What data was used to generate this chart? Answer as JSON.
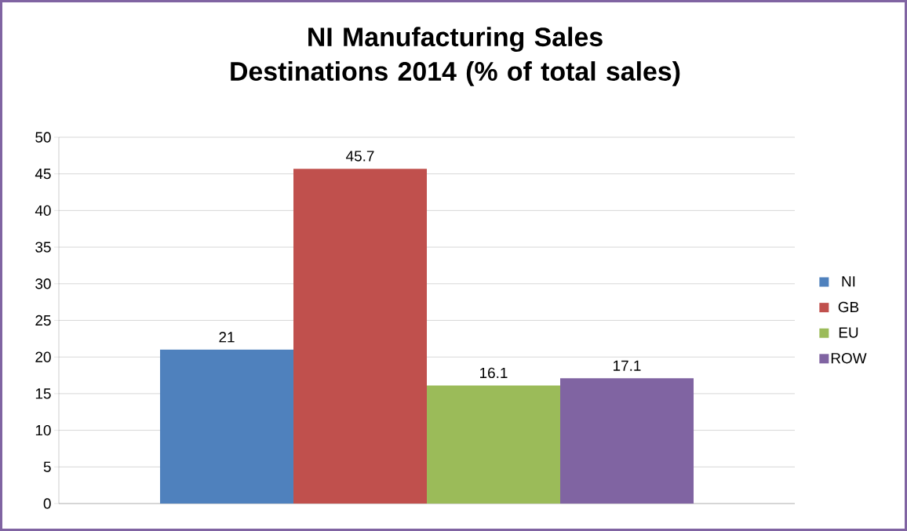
{
  "chart_data": {
    "type": "bar",
    "title": "NI Manufacturing Sales Destinations 2014 (% of total sales)",
    "categories": [
      null
    ],
    "series": [
      {
        "name": "NI",
        "color": "#4f81bd",
        "values": [
          21
        ]
      },
      {
        "name": "GB",
        "color": "#c0504d",
        "values": [
          45.7
        ]
      },
      {
        "name": "EU",
        "color": "#9bbb59",
        "values": [
          16.1
        ]
      },
      {
        "name": "ROW",
        "color": "#8064a2",
        "values": [
          17.1
        ]
      }
    ],
    "ylim": [
      0,
      50
    ],
    "yticks": [
      0,
      5,
      10,
      15,
      20,
      25,
      30,
      35,
      40,
      45,
      50
    ],
    "grid": "y",
    "legend": "right",
    "data_labels": true
  }
}
